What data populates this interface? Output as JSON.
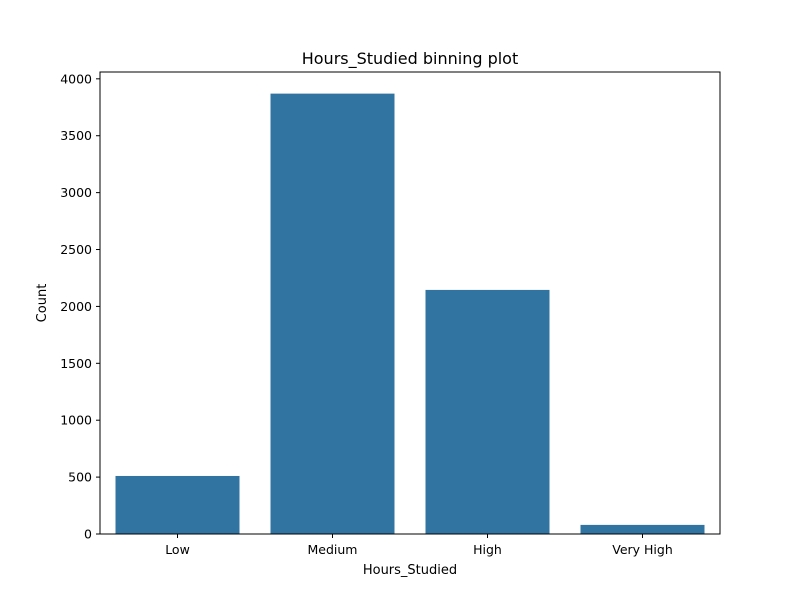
{
  "chart_data": {
    "type": "bar",
    "title": "Hours_Studied binning plot",
    "xlabel": "Hours_Studied",
    "ylabel": "Count",
    "categories": [
      "Low",
      "Medium",
      "High",
      "Very High"
    ],
    "values": [
      510,
      3870,
      2145,
      80
    ],
    "ylim": [
      0,
      4060
    ],
    "yticks": [
      0,
      500,
      1000,
      1500,
      2000,
      2500,
      3000,
      3500,
      4000
    ],
    "grid": false,
    "legend": "none",
    "bar_color": "#3274a1"
  }
}
